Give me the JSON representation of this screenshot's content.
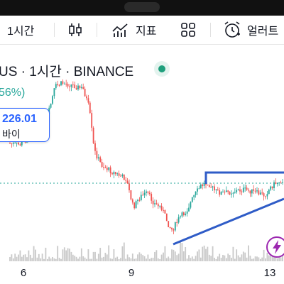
{
  "toolbar": {
    "interval_label": "1시간",
    "indicators_label": "지표",
    "alert_label": "얼러트"
  },
  "legend": {
    "symbol_text": "US · 1시간 · BINANCE",
    "change_text": "56%)"
  },
  "price_tooltip": {
    "price": "226.01",
    "action": "바이"
  },
  "x_axis": {
    "labels": [
      "6",
      "9",
      "13"
    ]
  },
  "colors": {
    "up": "#26a69a",
    "down": "#ef5350",
    "trendline": "#2f5cc7",
    "accent": "#2962ff"
  },
  "icons": [
    "candles-icon",
    "indicators-icon",
    "layout-icon",
    "alert-clock-icon",
    "lightning-icon"
  ]
}
